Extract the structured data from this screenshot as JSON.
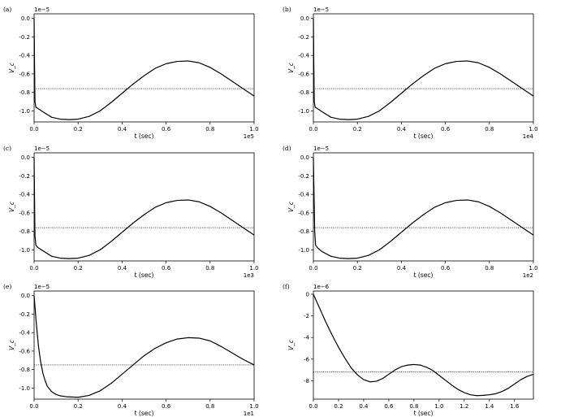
{
  "chart_data": [
    {
      "type": "line",
      "label": "(a)",
      "xlabel": "t (sec)",
      "ylabel": "V_c",
      "y_offset_text": "1e−5",
      "x_offset_text": "1e5",
      "xlim": [
        0,
        1.0
      ],
      "ylim": [
        -1.12,
        0.05
      ],
      "xticks": [
        "0.0",
        "0.2",
        "0.4",
        "0.6",
        "0.8",
        "1.0"
      ],
      "yticks": [
        "0.0",
        "-0.2",
        "-0.4",
        "-0.6",
        "-0.8",
        "-1.0"
      ],
      "xtick_values": [
        0,
        0.2,
        0.4,
        0.6,
        0.8,
        1.0
      ],
      "ytick_values": [
        0,
        -0.2,
        -0.4,
        -0.6,
        -0.8,
        -1.0
      ],
      "hline": -0.76,
      "series": [
        {
          "x": [
            0,
            0.002,
            0.004,
            0.008,
            0.015,
            0.04,
            0.08,
            0.12,
            0.16,
            0.2,
            0.25,
            0.3,
            0.35,
            0.4,
            0.45,
            0.5,
            0.55,
            0.6,
            0.65,
            0.7,
            0.75,
            0.8,
            0.85,
            0.9,
            0.95,
            1.0
          ],
          "y": [
            0.0,
            -0.5,
            -0.9,
            -0.96,
            -0.97,
            -1.01,
            -1.07,
            -1.09,
            -1.095,
            -1.09,
            -1.06,
            -1.0,
            -0.91,
            -0.81,
            -0.71,
            -0.62,
            -0.54,
            -0.49,
            -0.465,
            -0.46,
            -0.48,
            -0.53,
            -0.6,
            -0.68,
            -0.76,
            -0.84
          ]
        }
      ]
    },
    {
      "type": "line",
      "label": "(b)",
      "xlabel": "t (sec)",
      "ylabel": "V_c",
      "y_offset_text": "1e−5",
      "x_offset_text": "1e4",
      "xlim": [
        0,
        1.0
      ],
      "ylim": [
        -1.12,
        0.05
      ],
      "xticks": [
        "0.0",
        "0.2",
        "0.4",
        "0.6",
        "0.8",
        "1.0"
      ],
      "yticks": [
        "0.0",
        "-0.2",
        "-0.4",
        "-0.6",
        "-0.8",
        "-1.0"
      ],
      "xtick_values": [
        0,
        0.2,
        0.4,
        0.6,
        0.8,
        1.0
      ],
      "ytick_values": [
        0,
        -0.2,
        -0.4,
        -0.6,
        -0.8,
        -1.0
      ],
      "hline": -0.76,
      "series": [
        {
          "x": [
            0,
            0.002,
            0.004,
            0.008,
            0.015,
            0.04,
            0.08,
            0.12,
            0.16,
            0.2,
            0.25,
            0.3,
            0.35,
            0.4,
            0.45,
            0.5,
            0.55,
            0.6,
            0.65,
            0.7,
            0.75,
            0.8,
            0.85,
            0.9,
            0.95,
            1.0
          ],
          "y": [
            0.0,
            -0.5,
            -0.9,
            -0.96,
            -0.97,
            -1.01,
            -1.07,
            -1.09,
            -1.095,
            -1.09,
            -1.06,
            -1.0,
            -0.91,
            -0.81,
            -0.71,
            -0.62,
            -0.54,
            -0.49,
            -0.465,
            -0.46,
            -0.48,
            -0.53,
            -0.6,
            -0.68,
            -0.76,
            -0.84
          ]
        }
      ]
    },
    {
      "type": "line",
      "label": "(c)",
      "xlabel": "t (sec)",
      "ylabel": "V_c",
      "y_offset_text": "1e−5",
      "x_offset_text": "1e3",
      "xlim": [
        0,
        1.0
      ],
      "ylim": [
        -1.12,
        0.05
      ],
      "xticks": [
        "0.0",
        "0.2",
        "0.4",
        "0.6",
        "0.8",
        "1.0"
      ],
      "yticks": [
        "0.0",
        "-0.2",
        "-0.4",
        "-0.6",
        "-0.8",
        "-1.0"
      ],
      "xtick_values": [
        0,
        0.2,
        0.4,
        0.6,
        0.8,
        1.0
      ],
      "ytick_values": [
        0,
        -0.2,
        -0.4,
        -0.6,
        -0.8,
        -1.0
      ],
      "hline": -0.76,
      "series": [
        {
          "x": [
            0,
            0.002,
            0.004,
            0.008,
            0.015,
            0.04,
            0.08,
            0.12,
            0.16,
            0.2,
            0.25,
            0.3,
            0.35,
            0.4,
            0.45,
            0.5,
            0.55,
            0.6,
            0.65,
            0.7,
            0.75,
            0.8,
            0.85,
            0.9,
            0.95,
            1.0
          ],
          "y": [
            0.0,
            -0.45,
            -0.85,
            -0.95,
            -0.97,
            -1.01,
            -1.07,
            -1.09,
            -1.095,
            -1.09,
            -1.06,
            -1.0,
            -0.91,
            -0.81,
            -0.71,
            -0.62,
            -0.54,
            -0.49,
            -0.465,
            -0.46,
            -0.48,
            -0.53,
            -0.6,
            -0.68,
            -0.76,
            -0.84
          ]
        }
      ]
    },
    {
      "type": "line",
      "label": "(d)",
      "xlabel": "t (sec)",
      "ylabel": "V_c",
      "y_offset_text": "1e−5",
      "x_offset_text": "1e2",
      "xlim": [
        0,
        1.0
      ],
      "ylim": [
        -1.12,
        0.05
      ],
      "xticks": [
        "0.0",
        "0.2",
        "0.4",
        "0.6",
        "0.8",
        "1.0"
      ],
      "yticks": [
        "0.0",
        "-0.2",
        "-0.4",
        "-0.6",
        "-0.8",
        "-1.0"
      ],
      "xtick_values": [
        0,
        0.2,
        0.4,
        0.6,
        0.8,
        1.0
      ],
      "ytick_values": [
        0,
        -0.2,
        -0.4,
        -0.6,
        -0.8,
        -1.0
      ],
      "hline": -0.76,
      "series": [
        {
          "x": [
            0,
            0.003,
            0.006,
            0.01,
            0.02,
            0.04,
            0.08,
            0.12,
            0.16,
            0.2,
            0.25,
            0.3,
            0.35,
            0.4,
            0.45,
            0.5,
            0.55,
            0.6,
            0.65,
            0.7,
            0.75,
            0.8,
            0.85,
            0.9,
            0.95,
            1.0
          ],
          "y": [
            0.0,
            -0.4,
            -0.8,
            -0.95,
            -0.98,
            -1.02,
            -1.07,
            -1.09,
            -1.095,
            -1.09,
            -1.06,
            -1.0,
            -0.91,
            -0.81,
            -0.71,
            -0.62,
            -0.54,
            -0.49,
            -0.465,
            -0.46,
            -0.48,
            -0.53,
            -0.6,
            -0.68,
            -0.76,
            -0.84
          ]
        }
      ]
    },
    {
      "type": "line",
      "label": "(e)",
      "xlabel": "t (sec)",
      "ylabel": "V_c",
      "y_offset_text": "1e−5",
      "x_offset_text": "1e1",
      "xlim": [
        0,
        1.0
      ],
      "ylim": [
        -1.12,
        0.05
      ],
      "xticks": [
        "0.0",
        "0.2",
        "0.4",
        "0.6",
        "0.8",
        "1.0"
      ],
      "yticks": [
        "0.0",
        "-0.2",
        "-0.4",
        "-0.6",
        "-0.8",
        "-1.0"
      ],
      "xtick_values": [
        0,
        0.2,
        0.4,
        0.6,
        0.8,
        1.0
      ],
      "ytick_values": [
        0,
        -0.2,
        -0.4,
        -0.6,
        -0.8,
        -1.0
      ],
      "hline": -0.75,
      "series": [
        {
          "x": [
            0,
            0.01,
            0.02,
            0.03,
            0.04,
            0.05,
            0.06,
            0.08,
            0.1,
            0.12,
            0.15,
            0.2,
            0.25,
            0.3,
            0.35,
            0.4,
            0.45,
            0.5,
            0.55,
            0.6,
            0.65,
            0.7,
            0.75,
            0.8,
            0.85,
            0.9,
            0.95,
            1.0
          ],
          "y": [
            0.0,
            -0.3,
            -0.55,
            -0.72,
            -0.84,
            -0.92,
            -0.98,
            -1.04,
            -1.07,
            -1.085,
            -1.095,
            -1.1,
            -1.08,
            -1.03,
            -0.95,
            -0.85,
            -0.75,
            -0.65,
            -0.57,
            -0.51,
            -0.47,
            -0.455,
            -0.46,
            -0.49,
            -0.55,
            -0.62,
            -0.69,
            -0.75
          ]
        }
      ]
    },
    {
      "type": "line",
      "label": "(f)",
      "xlabel": "t (sec)",
      "ylabel": "V_c",
      "y_offset_text": "1e−6",
      "x_offset_text": "",
      "xlim": [
        0,
        1.75
      ],
      "ylim": [
        -9.7,
        0.3
      ],
      "xticks": [
        "0.0",
        "0.2",
        "0.4",
        "0.6",
        "0.8",
        "1.0",
        "1.2",
        "1.4",
        "1.6"
      ],
      "yticks": [
        "0",
        "-2",
        "-4",
        "-6",
        "-8"
      ],
      "xtick_values": [
        0,
        0.2,
        0.4,
        0.6,
        0.8,
        1.0,
        1.2,
        1.4,
        1.6
      ],
      "ytick_values": [
        0,
        -2,
        -4,
        -6,
        -8
      ],
      "hline": -7.2,
      "series": [
        {
          "x": [
            0,
            0.05,
            0.1,
            0.15,
            0.2,
            0.25,
            0.3,
            0.35,
            0.4,
            0.45,
            0.5,
            0.55,
            0.6,
            0.65,
            0.7,
            0.75,
            0.8,
            0.85,
            0.9,
            0.95,
            1.0,
            1.05,
            1.1,
            1.15,
            1.2,
            1.25,
            1.3,
            1.35,
            1.4,
            1.45,
            1.5,
            1.55,
            1.6,
            1.65,
            1.7,
            1.75
          ],
          "y": [
            0.0,
            -1.3,
            -2.6,
            -3.8,
            -4.9,
            -5.9,
            -6.8,
            -7.45,
            -7.9,
            -8.1,
            -8.05,
            -7.8,
            -7.4,
            -7.0,
            -6.7,
            -6.55,
            -6.5,
            -6.55,
            -6.75,
            -7.05,
            -7.5,
            -7.95,
            -8.4,
            -8.8,
            -9.1,
            -9.3,
            -9.38,
            -9.35,
            -9.3,
            -9.2,
            -9.0,
            -8.7,
            -8.3,
            -7.9,
            -7.6,
            -7.4
          ]
        }
      ]
    }
  ]
}
